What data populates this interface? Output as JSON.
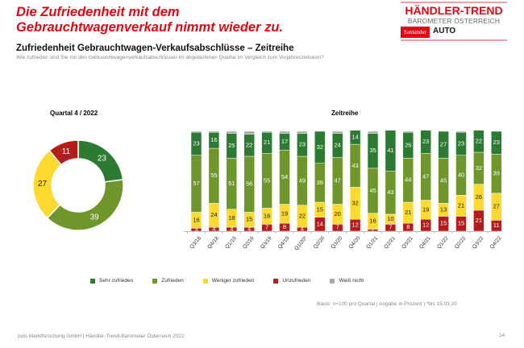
{
  "header": {
    "headline": "Die Zufriedenheit mit dem Gebrauchtwagenverkauf nimmt wieder zu.",
    "subtitle": "Zufriedenheit Gebrauchtwagen-Verkaufsabschlüsse – Zeitreihe",
    "question": "Wie zufrieden sind Sie mit den Gebrauchtwagenverkaufsabschlüssen im abgelaufenen Quartal im Vergleich zum Vorjahreszeitraum?"
  },
  "logo": {
    "title": "HÄNDLER-TREND",
    "subtitle": "BAROMETER ÖSTERREICH",
    "sponsor1": "Santander",
    "sponsor2": "AUTO"
  },
  "colors": {
    "sehr": "#2d7a32",
    "zufrieden": "#6e962a",
    "weniger": "#fcd92f",
    "unzufrieden": "#b51c1c",
    "weiss": "#a8a8a8"
  },
  "chart_data": [
    {
      "type": "pie",
      "title": "Quartal 4 / 2022",
      "donut": true,
      "labels": [
        "Sehr zufrieden",
        "Zufrieden",
        "Weniger zufrieden",
        "Unzufrieden"
      ],
      "values": [
        23,
        39,
        27,
        11
      ]
    },
    {
      "type": "bar",
      "stacked": true,
      "title": "Zeitreihe",
      "categories": [
        "Q3/18",
        "Q4/18",
        "Q1/19",
        "Q2/19",
        "Q3/19",
        "Q4/19",
        "Q1/20*",
        "Q2/20",
        "Q3/20",
        "Q4/20",
        "Q1/21",
        "Q2/21",
        "Q3/21",
        "Q4/21",
        "Q1/22",
        "Q2/22",
        "Q3/22",
        "Q4/22"
      ],
      "ylim": [
        0,
        100
      ],
      "legend": "bottom",
      "series": [
        {
          "name": "Unzufrieden",
          "key": "unzufrieden",
          "values": [
            3,
            4,
            4,
            4,
            7,
            8,
            4,
            14,
            7,
            12,
            2,
            7,
            8,
            12,
            15,
            15,
            21,
            11
          ]
        },
        {
          "name": "Weniger zufrieden",
          "key": "weniger",
          "values": [
            16,
            24,
            18,
            15,
            16,
            19,
            22,
            15,
            20,
            32,
            16,
            10,
            21,
            19,
            13,
            21,
            26,
            27
          ]
        },
        {
          "name": "Zufrieden",
          "key": "zufrieden",
          "values": [
            57,
            55,
            51,
            56,
            55,
            54,
            49,
            39,
            47,
            43,
            45,
            43,
            44,
            47,
            45,
            40,
            32,
            39
          ]
        },
        {
          "name": "Sehr zufrieden",
          "key": "sehr",
          "values": [
            23,
            16,
            25,
            22,
            21,
            17,
            23,
            32,
            24,
            14,
            35,
            41,
            26,
            23,
            27,
            23,
            22,
            23
          ]
        },
        {
          "name": "Weiß nicht",
          "key": "weiss",
          "values": [
            1,
            1,
            2,
            3,
            1,
            2,
            2,
            0,
            2,
            0,
            2,
            0,
            1,
            0,
            0,
            1,
            0,
            0
          ]
        }
      ]
    }
  ],
  "legend": [
    {
      "label": "Sehr zufrieden",
      "key": "sehr"
    },
    {
      "label": "Zufrieden",
      "key": "zufrieden"
    },
    {
      "label": "Weniger zufrieden",
      "key": "weniger"
    },
    {
      "label": "Unzufrieden",
      "key": "unzufrieden"
    },
    {
      "label": "Weiß nicht",
      "key": "weiss"
    }
  ],
  "basis": "Basis: n=100 pro Quartal | Angabe in Prozent | *bis 15.03.20",
  "footer": "puls Marktforschung GmbH | Händler-Trend-Barometer Österreich 2022",
  "page_number": "14"
}
